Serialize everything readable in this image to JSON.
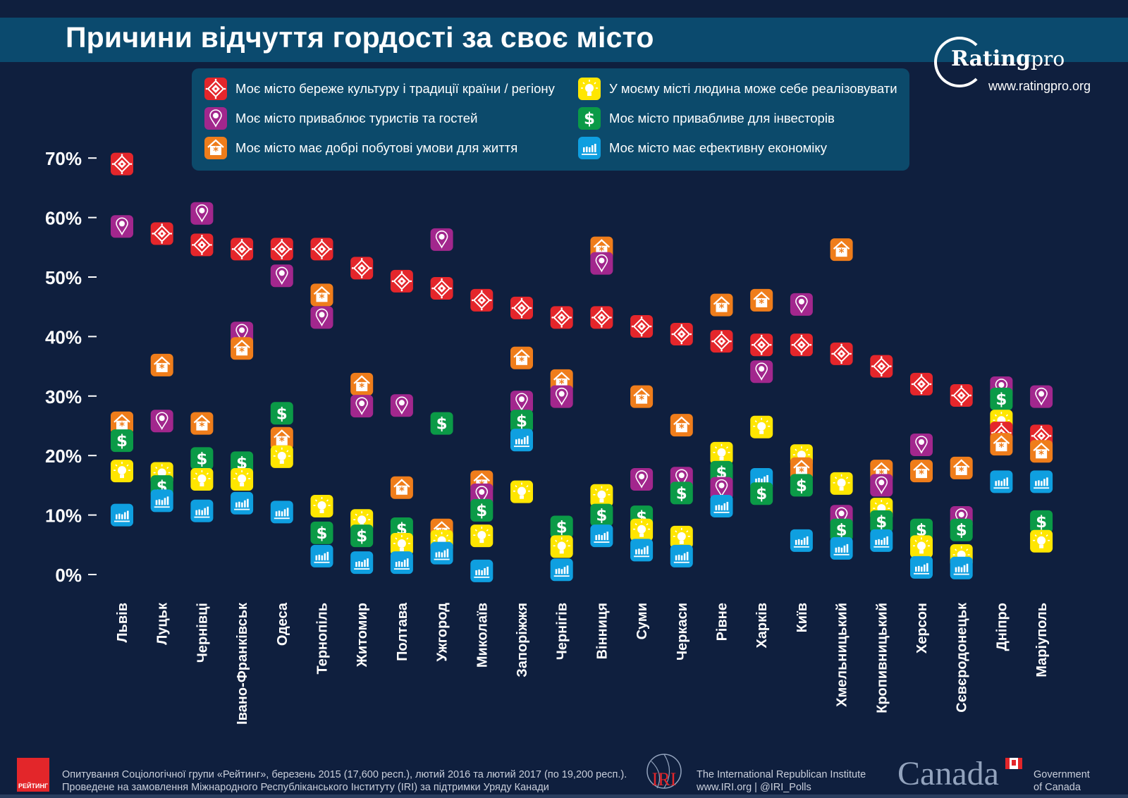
{
  "title": "Причини відчуття гордості за своє місто",
  "brand": {
    "name_bold": "Rating",
    "name_light": "pro",
    "url": "www.ratingpro.org"
  },
  "colors": {
    "background": "#0f1f3e",
    "title_band": "#0b4a6e",
    "legend_box": "#0c4a6b"
  },
  "chart_data": {
    "type": "scatter",
    "title": "Причини відчуття гордості за своє місто",
    "xlabel": "",
    "ylabel": "",
    "ylim": [
      0,
      70
    ],
    "yticks": [
      "0%",
      "10%",
      "20%",
      "30%",
      "40%",
      "50%",
      "60%",
      "70%"
    ],
    "grid": false,
    "legend": "top",
    "categories": [
      "Львів",
      "Луцьк",
      "Чернівці",
      "Івано-Франківськ",
      "Одеса",
      "Тернопіль",
      "Житомир",
      "Полтава",
      "Ужгород",
      "Миколаїв",
      "Запоріжжя",
      "Чернігів",
      "Вінниця",
      "Суми",
      "Черкаси",
      "Рівне",
      "Харків",
      "Київ",
      "Хмельницький",
      "Кропивницький",
      "Херсон",
      "Сєвєродонецьк",
      "Дніпро",
      "Маріуполь"
    ],
    "series": [
      {
        "name": "Моє місто береже культуру і традиції країни / регіону",
        "icon": "ornament-icon",
        "color": "#e4262b",
        "values": [
          69,
          57.3,
          55.4,
          54.7,
          54.7,
          54.7,
          51.5,
          49.3,
          48.1,
          46.1,
          44.8,
          43.2,
          43.2,
          41.7,
          40.4,
          39.2,
          38.6,
          38.6,
          37.1,
          35,
          32,
          30.1,
          23.8,
          23.3
        ]
      },
      {
        "name": "Моє місто приваблює туристів та гостей",
        "icon": "map-pin-icon",
        "color": "#a2278d",
        "values": [
          58.5,
          25.8,
          60.7,
          40.6,
          50.2,
          43.2,
          28.3,
          28.4,
          56.3,
          13.4,
          29,
          29.9,
          52.3,
          16,
          16.2,
          14.5,
          34.1,
          45.4,
          9.8,
          15,
          21.8,
          9.6,
          31.4,
          29.9
        ]
      },
      {
        "name": "Моє місто має добрі побутові умови для життя",
        "icon": "house-icon",
        "color": "#ef7d1b",
        "values": [
          25.5,
          35.2,
          25.4,
          38,
          22.9,
          47,
          32,
          14.6,
          7.5,
          15.6,
          36.4,
          32.6,
          54.9,
          29.9,
          25.1,
          45.3,
          46.1,
          17.8,
          54.6,
          17.4,
          17.4,
          17.9,
          21.9,
          20.7
        ]
      },
      {
        "name": "У моєму місті людина може себе реалізовувати",
        "icon": "lightbulb-icon",
        "color": "#ffe600",
        "values": [
          17.4,
          17,
          16,
          16,
          19.8,
          11.5,
          9.1,
          5.1,
          5.6,
          6.5,
          13.9,
          4.7,
          13.3,
          7.5,
          6.3,
          20.4,
          24.8,
          20,
          15.3,
          11,
          4.7,
          3.2,
          25.8,
          5.6
        ]
      },
      {
        "name": "Моє місто привабливе для інвесторів",
        "icon": "dollar-icon",
        "color": "#0b9a47",
        "values": [
          22.5,
          14.8,
          19.5,
          18.8,
          27.1,
          7,
          6.5,
          7.7,
          25.4,
          10.8,
          25.8,
          8,
          10,
          9.7,
          13.7,
          17.2,
          13.6,
          15,
          7.5,
          8.9,
          7.5,
          7.5,
          29.5,
          8.9
        ]
      },
      {
        "name": "Моє місто має ефективну економіку",
        "icon": "bar-chart-icon",
        "color": "#0f9fe0",
        "values": [
          10,
          12.4,
          10.7,
          12,
          10.5,
          3.1,
          2,
          2,
          3.6,
          0.6,
          22.6,
          0.8,
          6.5,
          4.1,
          3.1,
          11.5,
          16,
          5.7,
          4.4,
          5.7,
          1.2,
          1.1,
          15.6,
          15.6
        ]
      }
    ]
  },
  "footer": {
    "rating_logo": "РЕЙТИНГ",
    "source_line1": "Опитування Соціологічної групи «Рейтинг», березень 2015 (17,600 респ.), лютий 2016 та лютий 2017 (по 19,200 респ.).",
    "source_line2": "Проведене на замовлення Міжнародного Республіканського Інституту (IRI) за підтримки Уряду Канади",
    "iri_logo": "IRI",
    "iri_line1": "The International Republican Institute",
    "iri_line2": "www.IRI.org | @IRI_Polls",
    "canada_wordmark": "Canada",
    "gov_line1": "Government",
    "gov_line2": "of Canada"
  }
}
